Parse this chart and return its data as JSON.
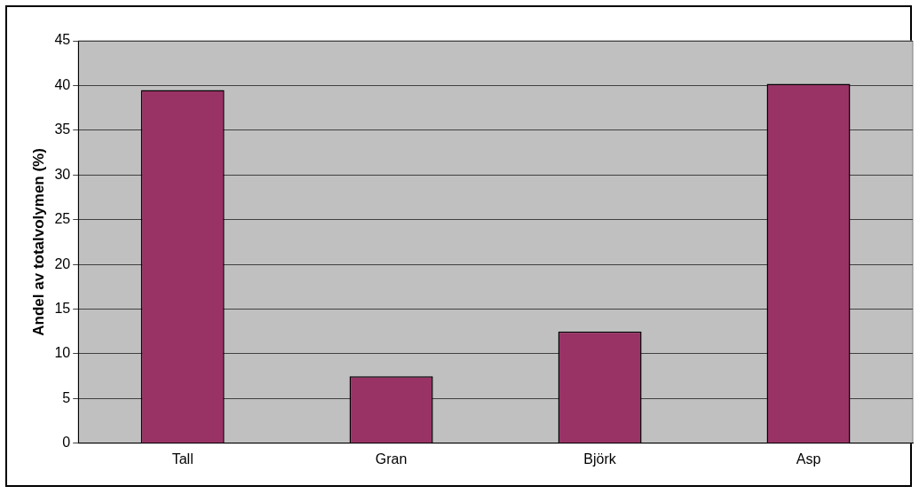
{
  "chart_data": {
    "type": "bar",
    "ylabel": "Andel av totalvolymen (%)",
    "categories": [
      "Tall",
      "Gran",
      "Björk",
      "Asp"
    ],
    "values": [
      39.5,
      7.5,
      12.5,
      40.2
    ],
    "color": "#993366",
    "ylim": [
      0,
      45
    ],
    "yticks": [
      0,
      5,
      10,
      15,
      20,
      25,
      30,
      35,
      40,
      45
    ],
    "grid": "y"
  }
}
